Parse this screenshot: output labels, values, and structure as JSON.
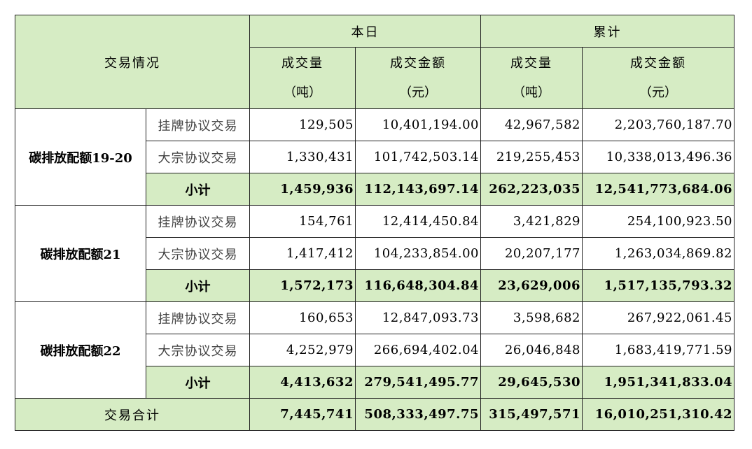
{
  "header": {
    "corner": "交易情况",
    "today": "本日",
    "cumulative": "累计",
    "vol_label": "成交量",
    "vol_unit": "（吨）",
    "amt_label": "成交金额",
    "amt_unit": "（元）"
  },
  "groups": [
    {
      "name": "碳排放配额19-20",
      "rows": [
        {
          "type": "挂牌协议交易",
          "d_vol": "129,505",
          "d_amt": "10,401,194.00",
          "c_vol": "42,967,582",
          "c_amt": "2,203,760,187.70"
        },
        {
          "type": "大宗协议交易",
          "d_vol": "1,330,431",
          "d_amt": "101,742,503.14",
          "c_vol": "219,255,453",
          "c_amt": "10,338,013,496.36"
        }
      ],
      "subtotal": {
        "label": "小计",
        "d_vol": "1,459,936",
        "d_amt": "112,143,697.14",
        "c_vol": "262,223,035",
        "c_amt": "12,541,773,684.06"
      }
    },
    {
      "name": "碳排放配额21",
      "rows": [
        {
          "type": "挂牌协议交易",
          "d_vol": "154,761",
          "d_amt": "12,414,450.84",
          "c_vol": "3,421,829",
          "c_amt": "254,100,923.50"
        },
        {
          "type": "大宗协议交易",
          "d_vol": "1,417,412",
          "d_amt": "104,233,854.00",
          "c_vol": "20,207,177",
          "c_amt": "1,263,034,869.82"
        }
      ],
      "subtotal": {
        "label": "小计",
        "d_vol": "1,572,173",
        "d_amt": "116,648,304.84",
        "c_vol": "23,629,006",
        "c_amt": "1,517,135,793.32"
      }
    },
    {
      "name": "碳排放配额22",
      "rows": [
        {
          "type": "挂牌协议交易",
          "d_vol": "160,653",
          "d_amt": "12,847,093.73",
          "c_vol": "3,598,682",
          "c_amt": "267,922,061.45"
        },
        {
          "type": "大宗协议交易",
          "d_vol": "4,252,979",
          "d_amt": "266,694,402.04",
          "c_vol": "26,046,848",
          "c_amt": "1,683,419,771.59"
        }
      ],
      "subtotal": {
        "label": "小计",
        "d_vol": "4,413,632",
        "d_amt": "279,541,495.77",
        "c_vol": "29,645,530",
        "c_amt": "1,951,341,833.04"
      }
    }
  ],
  "total": {
    "label": "交易合计",
    "d_vol": "7,445,741",
    "d_amt": "508,333,497.75",
    "c_vol": "315,497,571",
    "c_amt": "16,010,251,310.42"
  },
  "colors": {
    "header_bg": "#d6ecc4",
    "group_bg": "#e4f1d8",
    "border": "#222222"
  }
}
